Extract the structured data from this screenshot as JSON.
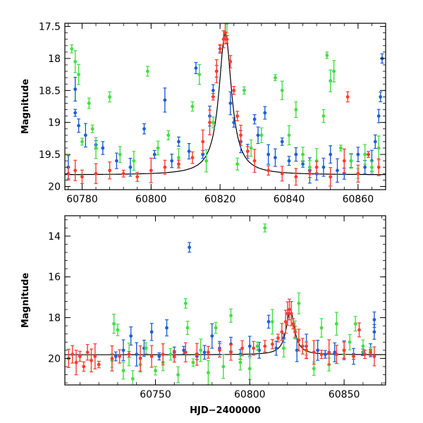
{
  "colors": {
    "blue": "#1f5fd6",
    "green": "#44dd44",
    "red": "#ff3b2e",
    "model": "#000000"
  },
  "chart_data": [
    {
      "type": "scatter",
      "title": "",
      "xlabel": "",
      "ylabel": "Magnitude",
      "xlim": [
        60775,
        60868
      ],
      "ylim": [
        20.05,
        17.45
      ],
      "y_inverted": true,
      "x_ticks": [
        60780,
        60800,
        60820,
        60840,
        60860
      ],
      "x_tick_labels": [
        "60780",
        "60800",
        "60820",
        "60840",
        "60860"
      ],
      "y_ticks": [
        17.5,
        18,
        18.5,
        19,
        19.5,
        20
      ],
      "y_tick_labels": [
        "17.5",
        "18",
        "18.5",
        "19",
        "19.5",
        "20"
      ],
      "legend": "none",
      "series": [
        {
          "color": "blue",
          "points": [
            [
              60776,
              19.7
            ],
            [
              60778,
              18.48
            ],
            [
              60778,
              18.85
            ],
            [
              60779,
              19.05
            ],
            [
              60781,
              19.2
            ],
            [
              60784,
              19.35
            ],
            [
              60786,
              19.4
            ],
            [
              60790,
              19.6
            ],
            [
              60794,
              19.7
            ],
            [
              60798,
              19.1
            ],
            [
              60801,
              19.5
            ],
            [
              60804,
              18.65
            ],
            [
              60806,
              19.6
            ],
            [
              60808,
              19.3
            ],
            [
              60811,
              19.45
            ],
            [
              60813,
              18.15
            ],
            [
              60815,
              19.5
            ],
            [
              60817,
              18.9
            ],
            [
              60818,
              18.5
            ],
            [
              60819,
              18.2
            ],
            [
              60820,
              17.85
            ],
            [
              60823,
              18.7
            ],
            [
              60824,
              19.0
            ],
            [
              60826,
              19.3
            ],
            [
              60828,
              19.45
            ],
            [
              60830,
              18.95
            ],
            [
              60831,
              19.2
            ],
            [
              60833,
              18.85
            ],
            [
              60834,
              19.5
            ],
            [
              60836,
              19.55
            ],
            [
              60838,
              19.3
            ],
            [
              60840,
              19.6
            ],
            [
              60842,
              19.5
            ],
            [
              60844,
              19.65
            ],
            [
              60846,
              19.75
            ],
            [
              60848,
              19.8
            ],
            [
              60850,
              19.7
            ],
            [
              60852,
              19.5
            ],
            [
              60854,
              19.75
            ],
            [
              60856,
              19.8
            ],
            [
              60858,
              19.6
            ],
            [
              60860,
              19.5
            ],
            [
              60862,
              19.7
            ],
            [
              60864,
              19.6
            ],
            [
              60865,
              19.3
            ],
            [
              60866,
              18.9
            ],
            [
              60866.5,
              18.6
            ],
            [
              60867,
              18.0
            ]
          ]
        },
        {
          "color": "green",
          "points": [
            [
              60777,
              17.85
            ],
            [
              60778,
              18.05
            ],
            [
              60779,
              18.25
            ],
            [
              60780,
              19.3
            ],
            [
              60782,
              18.7
            ],
            [
              60783,
              19.1
            ],
            [
              60784,
              19.4
            ],
            [
              60788,
              18.6
            ],
            [
              60791,
              19.5
            ],
            [
              60795,
              19.6
            ],
            [
              60799,
              18.2
            ],
            [
              60802,
              19.4
            ],
            [
              60805,
              19.2
            ],
            [
              60808,
              19.55
            ],
            [
              60812,
              18.75
            ],
            [
              60814,
              18.25
            ],
            [
              60816,
              19.6
            ],
            [
              60818,
              19.0
            ],
            [
              60822,
              17.45
            ],
            [
              60825,
              19.65
            ],
            [
              60827,
              18.5
            ],
            [
              60829,
              19.4
            ],
            [
              60832,
              19.2
            ],
            [
              60836,
              18.3
            ],
            [
              60838,
              18.5
            ],
            [
              60840,
              19.2
            ],
            [
              60842,
              18.8
            ],
            [
              60844,
              19.5
            ],
            [
              60846,
              19.7
            ],
            [
              60848,
              19.6
            ],
            [
              60850,
              18.9
            ],
            [
              60851,
              17.95
            ],
            [
              60852,
              18.35
            ],
            [
              60853,
              18.2
            ],
            [
              60855,
              19.4
            ],
            [
              60858,
              19.6
            ],
            [
              60860,
              19.8
            ],
            [
              60862,
              19.5
            ],
            [
              60864,
              19.7
            ],
            [
              60866,
              19.4
            ]
          ]
        },
        {
          "color": "red",
          "points": [
            [
              60776,
              19.8
            ],
            [
              60778,
              19.75
            ],
            [
              60780,
              19.85
            ],
            [
              60784,
              19.8
            ],
            [
              60788,
              19.75
            ],
            [
              60792,
              19.8
            ],
            [
              60796,
              19.85
            ],
            [
              60800,
              19.75
            ],
            [
              60804,
              19.7
            ],
            [
              60808,
              19.65
            ],
            [
              60812,
              19.55
            ],
            [
              60815,
              19.3
            ],
            [
              60817,
              19.0
            ],
            [
              60818,
              18.6
            ],
            [
              60819,
              18.2
            ],
            [
              60820,
              17.85
            ],
            [
              60821,
              17.7
            ],
            [
              60821.5,
              17.6
            ],
            [
              60822,
              17.7
            ],
            [
              60823,
              18.05
            ],
            [
              60824,
              18.5
            ],
            [
              60825,
              18.9
            ],
            [
              60826,
              19.2
            ],
            [
              60828,
              19.45
            ],
            [
              60830,
              19.6
            ],
            [
              60834,
              19.75
            ],
            [
              60838,
              19.8
            ],
            [
              60842,
              19.85
            ],
            [
              60846,
              19.8
            ],
            [
              60848,
              19.7
            ],
            [
              60852,
              19.85
            ],
            [
              60856,
              19.6
            ],
            [
              60857,
              18.6
            ],
            [
              60860,
              19.8
            ],
            [
              60863,
              19.5
            ],
            [
              60866,
              19.7
            ]
          ]
        }
      ],
      "model_curve": {
        "color": "model",
        "baseline": 19.82,
        "peak": 17.6,
        "t_peak": 60821.5,
        "width": 2.2
      }
    },
    {
      "type": "scatter",
      "title": "",
      "xlabel": "HJD−2400000",
      "ylabel": "Magnitude",
      "xlim": [
        60702,
        60872
      ],
      "ylim": [
        21.3,
        13.0
      ],
      "y_inverted": true,
      "x_ticks": [
        60750,
        60800,
        60850
      ],
      "x_tick_labels": [
        "60750",
        "60800",
        "60850"
      ],
      "y_ticks": [
        14,
        16,
        18,
        20
      ],
      "y_tick_labels": [
        "14",
        "16",
        "18",
        "20"
      ],
      "legend": "none",
      "series": [
        {
          "color": "blue",
          "points": [
            [
              60729,
              19.9
            ],
            [
              60733,
              19.6
            ],
            [
              60737,
              18.9
            ],
            [
              60740,
              19.8
            ],
            [
              60744,
              19.5
            ],
            [
              60748,
              18.7
            ],
            [
              60752,
              19.9
            ],
            [
              60756,
              18.5
            ],
            [
              60760,
              19.7
            ],
            [
              60765,
              19.6
            ],
            [
              60768,
              14.55
            ],
            [
              60772,
              19.9
            ],
            [
              60776,
              19.7
            ],
            [
              60780,
              18.9
            ],
            [
              60784,
              19.5
            ],
            [
              60790,
              19.3
            ],
            [
              60795,
              19.8
            ],
            [
              60800,
              19.4
            ],
            [
              60805,
              19.6
            ],
            [
              60810,
              18.2
            ],
            [
              60814,
              19.5
            ],
            [
              60818,
              19.0
            ],
            [
              60825,
              19.6
            ],
            [
              60830,
              19.4
            ],
            [
              60836,
              19.6
            ],
            [
              60840,
              19.8
            ],
            [
              60845,
              19.7
            ],
            [
              60850,
              19.6
            ],
            [
              60855,
              19.9
            ],
            [
              60860,
              19.7
            ],
            [
              60864,
              19.6
            ],
            [
              60866,
              18.1
            ],
            [
              60866,
              18.7
            ]
          ]
        },
        {
          "color": "green",
          "points": [
            [
              60727,
              20.1
            ],
            [
              60728,
              18.3
            ],
            [
              60730,
              18.6
            ],
            [
              60733,
              20.6
            ],
            [
              60736,
              19.8
            ],
            [
              60738,
              21.0
            ],
            [
              60742,
              20.3
            ],
            [
              60745,
              19.5
            ],
            [
              60750,
              20.6
            ],
            [
              60754,
              20.2
            ],
            [
              60758,
              19.8
            ],
            [
              60762,
              20.8
            ],
            [
              60766,
              17.3
            ],
            [
              60767,
              18.5
            ],
            [
              60770,
              20.2
            ],
            [
              60774,
              19.6
            ],
            [
              60778,
              20.7
            ],
            [
              60782,
              18.5
            ],
            [
              60786,
              20.4
            ],
            [
              60790,
              17.9
            ],
            [
              60795,
              20.2
            ],
            [
              60800,
              20.5
            ],
            [
              60804,
              19.4
            ],
            [
              60808,
              13.6
            ],
            [
              60812,
              18.2
            ],
            [
              60818,
              19.5
            ],
            [
              60824,
              18.6
            ],
            [
              60826,
              17.3
            ],
            [
              60830,
              19.6
            ],
            [
              60834,
              20.5
            ],
            [
              60838,
              18.5
            ],
            [
              60842,
              20.3
            ],
            [
              60846,
              18.3
            ],
            [
              60850,
              19.8
            ],
            [
              60853,
              19.2
            ],
            [
              60856,
              18.3
            ],
            [
              60860,
              19.4
            ],
            [
              60864,
              19.6
            ]
          ]
        },
        {
          "color": "red",
          "points": [
            [
              60704,
              20.0
            ],
            [
              60706,
              19.8
            ],
            [
              60708,
              20.2
            ],
            [
              60710,
              19.9
            ],
            [
              60712,
              20.4
            ],
            [
              60714,
              19.7
            ],
            [
              60716,
              20.1
            ],
            [
              60718,
              19.9
            ],
            [
              60720,
              20.3
            ],
            [
              60727,
              20.0
            ],
            [
              60731,
              19.9
            ],
            [
              60736,
              19.8
            ],
            [
              60742,
              20.0
            ],
            [
              60748,
              19.9
            ],
            [
              60754,
              19.8
            ],
            [
              60760,
              19.9
            ],
            [
              60766,
              19.7
            ],
            [
              60772,
              19.8
            ],
            [
              60778,
              19.7
            ],
            [
              60784,
              19.6
            ],
            [
              60790,
              19.7
            ],
            [
              60796,
              19.5
            ],
            [
              60802,
              19.5
            ],
            [
              60808,
              19.4
            ],
            [
              60812,
              19.3
            ],
            [
              60815,
              19.0
            ],
            [
              60817,
              18.7
            ],
            [
              60819,
              18.2
            ],
            [
              60820,
              17.8
            ],
            [
              60821,
              17.6
            ],
            [
              60822,
              17.8
            ],
            [
              60823,
              18.3
            ],
            [
              60824,
              18.7
            ],
            [
              60826,
              19.1
            ],
            [
              60828,
              19.4
            ],
            [
              60830,
              19.6
            ],
            [
              60834,
              19.7
            ],
            [
              60838,
              19.8
            ],
            [
              60842,
              19.7
            ],
            [
              60846,
              19.8
            ],
            [
              60850,
              19.6
            ],
            [
              60855,
              19.9
            ],
            [
              60858,
              18.6
            ],
            [
              60861,
              19.8
            ],
            [
              60864,
              19.7
            ],
            [
              60866,
              19.9
            ]
          ]
        }
      ],
      "model_curve": {
        "color": "model",
        "baseline": 19.82,
        "peak": 17.6,
        "t_peak": 60821.5,
        "width": 2.6
      }
    }
  ]
}
